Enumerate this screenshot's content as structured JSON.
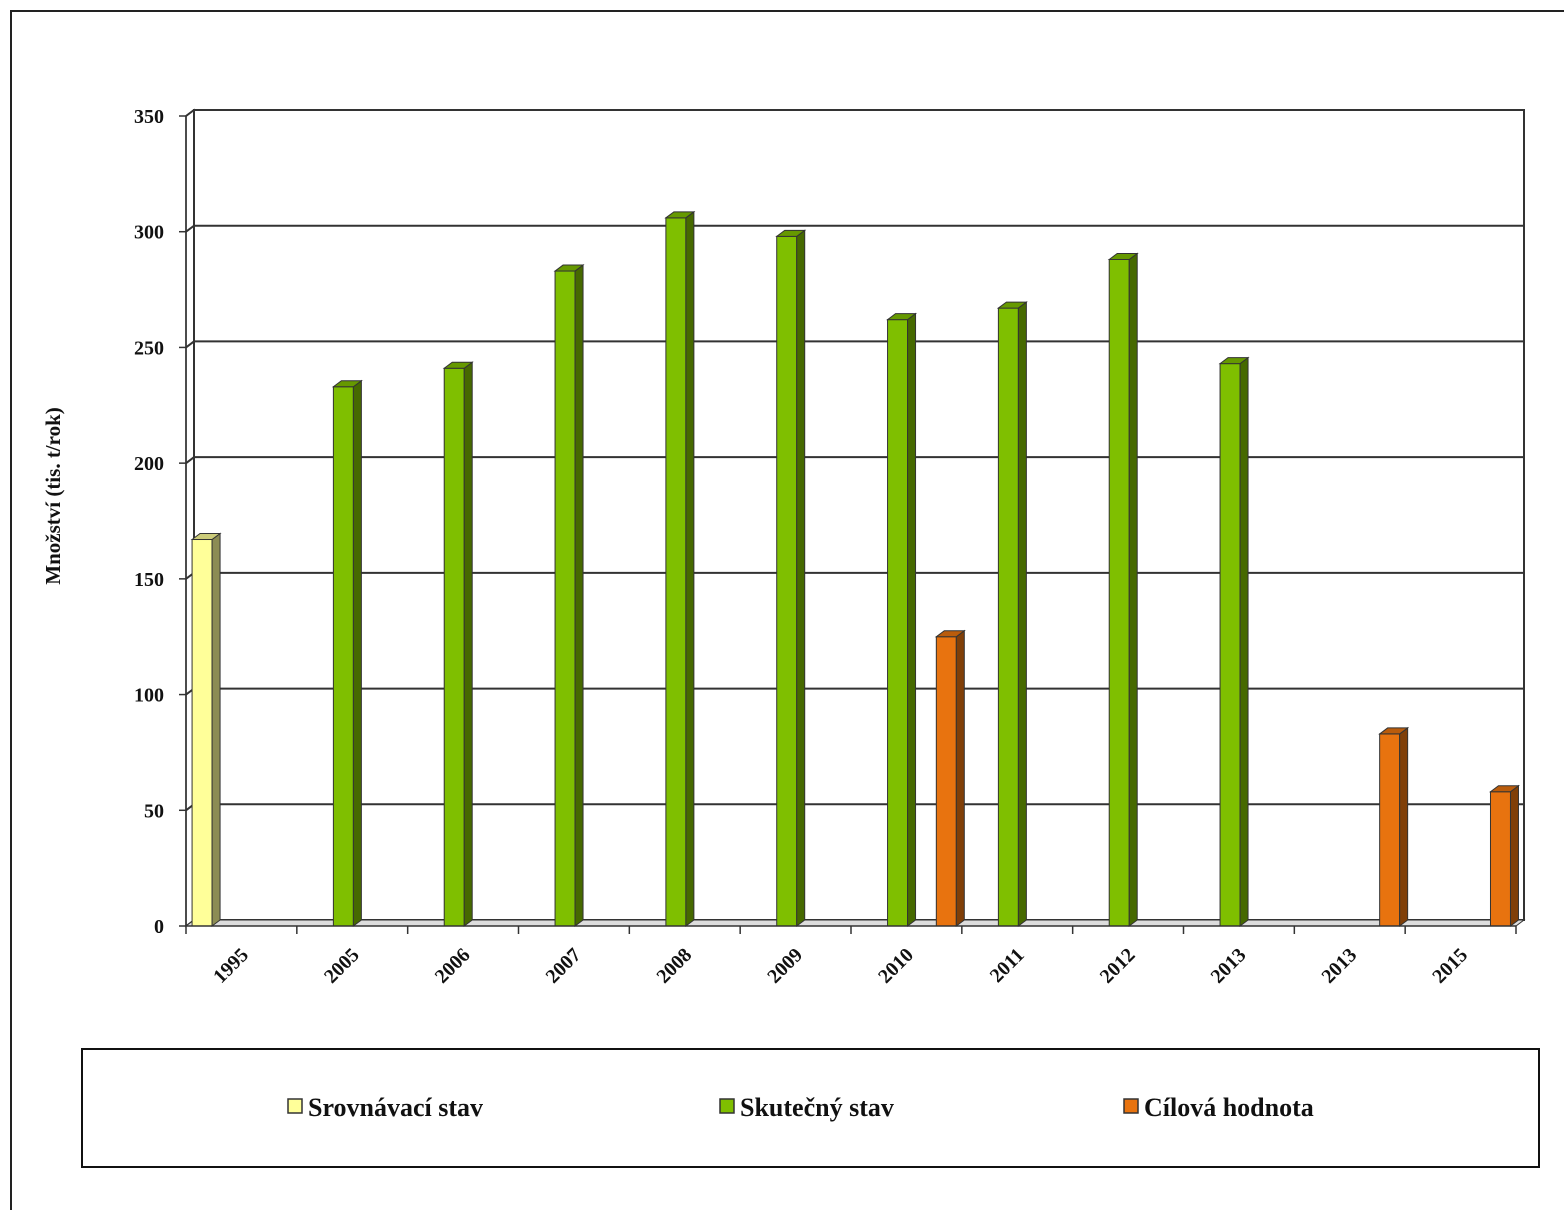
{
  "chart_data": {
    "type": "bar",
    "ylabel": "Množství (tis. t/rok)",
    "xlabel": "",
    "ylim": [
      0,
      350
    ],
    "ytick_step": 50,
    "grid": true,
    "legend_position": "bottom",
    "categories": [
      "1995",
      "2005",
      "2006",
      "2007",
      "2008",
      "2009",
      "2010",
      "2011",
      "2012",
      "2013",
      "2013",
      "2015"
    ],
    "series": [
      {
        "name": "Srovnávací stav",
        "color": "#ffff99",
        "values": [
          167,
          null,
          null,
          null,
          null,
          null,
          null,
          null,
          null,
          null,
          null,
          null
        ]
      },
      {
        "name": "Skutečný stav",
        "color": "#7fbf00",
        "values": [
          null,
          233,
          241,
          283,
          306,
          298,
          262,
          267,
          288,
          243,
          null,
          null
        ]
      },
      {
        "name": "Cílová hodnota",
        "color": "#e8730f",
        "values": [
          null,
          null,
          null,
          null,
          null,
          null,
          125,
          null,
          null,
          null,
          83,
          58
        ]
      }
    ]
  }
}
